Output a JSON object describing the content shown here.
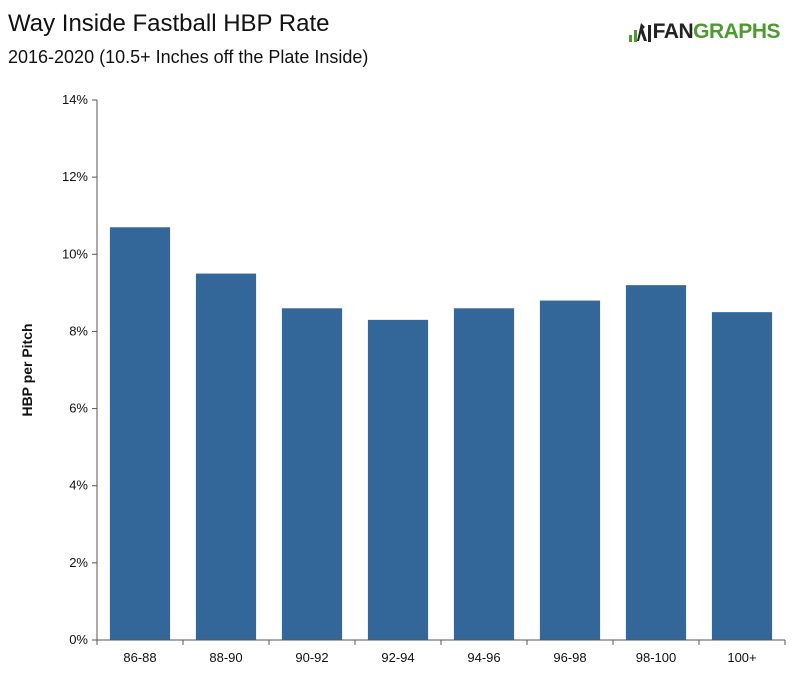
{
  "header": {
    "title": "Way Inside Fastball HBP Rate",
    "subtitle": "2016-2020 (10.5+ Inches off the Plate Inside)"
  },
  "logo": {
    "text_left": "FAN",
    "text_right": "GRAPHS",
    "colors": {
      "green": "#4c9b2f",
      "dark": "#222222"
    }
  },
  "chart_data": {
    "type": "bar",
    "categories": [
      "86-88",
      "88-90",
      "90-92",
      "92-94",
      "94-96",
      "96-98",
      "98-100",
      "100+"
    ],
    "values": [
      10.7,
      9.5,
      8.6,
      8.3,
      8.6,
      8.8,
      9.2,
      8.5
    ],
    "ylabel": "HBP per Pitch",
    "xlabel": "",
    "ylim": [
      0,
      14
    ],
    "yticks": [
      "0%",
      "2%",
      "4%",
      "6%",
      "8%",
      "10%",
      "12%",
      "14%"
    ],
    "ytick_values": [
      0,
      2,
      4,
      6,
      8,
      10,
      12,
      14
    ],
    "bar_color": "#336699",
    "grid": false
  }
}
